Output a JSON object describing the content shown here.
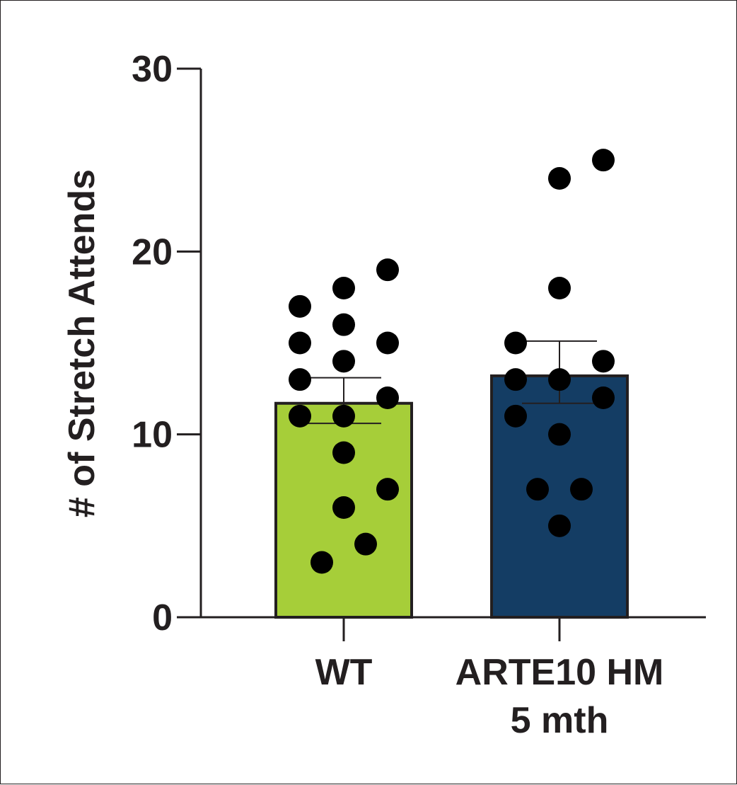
{
  "chart_data": {
    "type": "bar",
    "ylabel": "# of Stretch Attends",
    "ylim": [
      0,
      30
    ],
    "yticks": [
      0,
      10,
      20,
      30
    ],
    "categories": [
      {
        "lines": [
          "WT"
        ]
      },
      {
        "lines": [
          "ARTE10 HM",
          "5 mth"
        ]
      }
    ],
    "bars": [
      {
        "mean": 11.7,
        "sem_low": 10.6,
        "sem_high": 13.1,
        "color": "#a6ce39",
        "points": [
          {
            "slot": -2,
            "y": 17
          },
          {
            "slot": -2,
            "y": 15
          },
          {
            "slot": -2,
            "y": 13
          },
          {
            "slot": -2,
            "y": 11
          },
          {
            "slot": -1,
            "y": 3
          },
          {
            "slot": 0,
            "y": 18
          },
          {
            "slot": 0,
            "y": 16
          },
          {
            "slot": 0,
            "y": 14
          },
          {
            "slot": 0,
            "y": 11
          },
          {
            "slot": 0,
            "y": 9
          },
          {
            "slot": 0,
            "y": 6
          },
          {
            "slot": 1,
            "y": 4
          },
          {
            "slot": 2,
            "y": 19
          },
          {
            "slot": 2,
            "y": 15
          },
          {
            "slot": 2,
            "y": 12
          },
          {
            "slot": 2,
            "y": 7
          }
        ]
      },
      {
        "mean": 13.2,
        "sem_low": 11.7,
        "sem_high": 15.1,
        "color": "#143d64",
        "points": [
          {
            "slot": -2,
            "y": 15
          },
          {
            "slot": -2,
            "y": 13
          },
          {
            "slot": -2,
            "y": 11
          },
          {
            "slot": -1,
            "y": 7
          },
          {
            "slot": 0,
            "y": 24
          },
          {
            "slot": 0,
            "y": 18
          },
          {
            "slot": 0,
            "y": 13
          },
          {
            "slot": 0,
            "y": 10
          },
          {
            "slot": 0,
            "y": 5
          },
          {
            "slot": 1,
            "y": 7
          },
          {
            "slot": 2,
            "y": 25
          },
          {
            "slot": 2,
            "y": 14
          },
          {
            "slot": 2,
            "y": 12
          }
        ]
      }
    ],
    "grid": false,
    "legend": "none"
  }
}
